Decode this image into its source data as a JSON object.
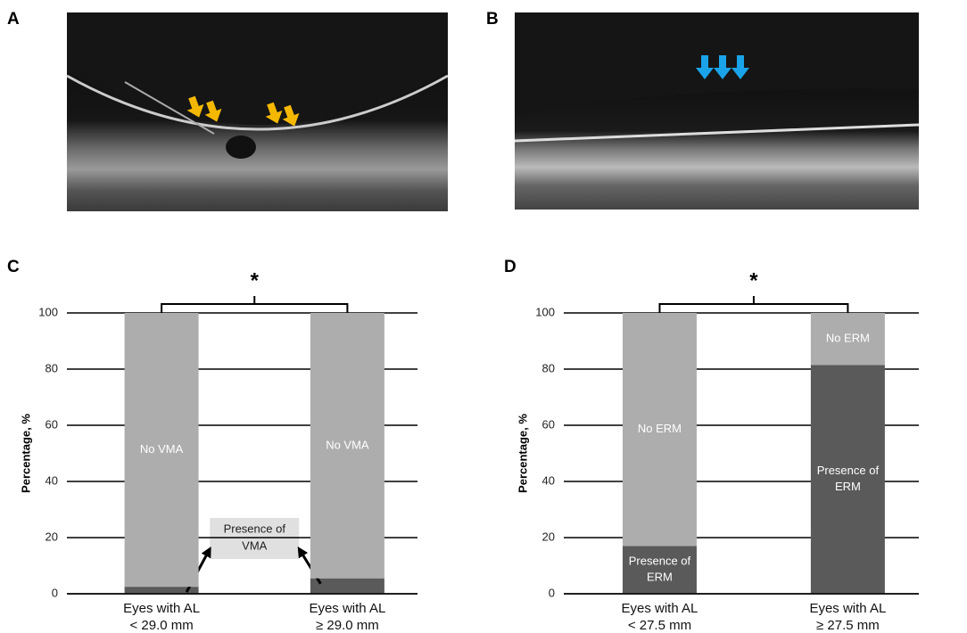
{
  "image_panels": [
    {
      "label": "A"
    },
    {
      "label": "B"
    }
  ],
  "chart_data": [
    {
      "type": "bar",
      "stacked": true,
      "panel_label": "C",
      "ylabel": "Percentage, %",
      "annotation": "*",
      "categories": [
        [
          "Eyes with AL",
          "< 29.0 mm"
        ],
        [
          "Eyes with AL",
          "≥ 29.0 mm"
        ]
      ],
      "series": [
        {
          "name": [
            "Presence of",
            "VMA"
          ],
          "color": "#5a5a5a",
          "label_style": "callout",
          "values": [
            2.5,
            5.5
          ]
        },
        {
          "name": [
            "No VMA"
          ],
          "color": "#adadad",
          "label_style": "inside",
          "values": [
            97.5,
            94.5
          ]
        }
      ],
      "ylim": [
        0,
        100
      ],
      "yticks": [
        0,
        20,
        40,
        60,
        80,
        100
      ],
      "grid": true
    },
    {
      "type": "bar",
      "stacked": true,
      "panel_label": "D",
      "ylabel": "Percentage, %",
      "annotation": "*",
      "categories": [
        [
          "Eyes with AL",
          "< 27.5 mm"
        ],
        [
          "Eyes with AL",
          "≥ 27.5 mm"
        ]
      ],
      "series": [
        {
          "name": [
            "Presence of",
            "ERM"
          ],
          "color": "#5a5a5a",
          "label_style": "inside",
          "values": [
            17,
            81.5
          ]
        },
        {
          "name": [
            "No ERM"
          ],
          "color": "#adadad",
          "label_style": "inside",
          "values": [
            83,
            18.5
          ]
        }
      ],
      "ylim": [
        0,
        100
      ],
      "yticks": [
        0,
        20,
        40,
        60,
        80,
        100
      ],
      "grid": true
    }
  ]
}
